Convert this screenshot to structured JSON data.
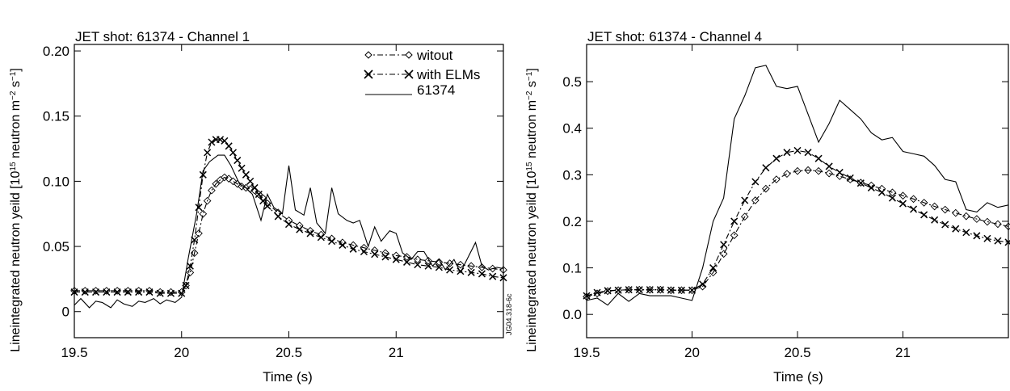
{
  "ylabel_main": "Lineintegrated neutron yeild [10",
  "ylabel_exp15": "15",
  "ylabel_mid": " neutron m",
  "ylabel_expm2": "−2",
  "ylabel_s": " s",
  "ylabel_expm1": "−1",
  "ylabel_close": "]",
  "colors": {
    "line": "#000000",
    "background": "#ffffff"
  },
  "chart_data": [
    {
      "type": "line",
      "title": "JET shot: 61374 - Channel 1",
      "xlabel": "Time (s)",
      "xlim": [
        19.5,
        21.5
      ],
      "ylim": [
        -0.02,
        0.205
      ],
      "xticks": [
        19.5,
        20,
        20.5,
        21
      ],
      "xtick_labels": [
        "19.5",
        "20",
        "20.5",
        "21"
      ],
      "yticks": [
        0,
        0.05,
        0.1,
        0.15,
        0.2
      ],
      "ytick_labels": [
        "0",
        "0.05",
        "0.10",
        "0.15",
        "0.20"
      ],
      "watermark": "JG04.318-6c",
      "legend": {
        "position": "top-right",
        "entries": [
          "witout",
          "with ELMs",
          "61374"
        ]
      },
      "series": [
        {
          "name": "witout",
          "marker": "diamond",
          "style": "dash-dot",
          "x": [
            19.5,
            19.55,
            19.6,
            19.65,
            19.7,
            19.75,
            19.8,
            19.85,
            19.9,
            19.95,
            20.0,
            20.02,
            20.04,
            20.06,
            20.08,
            20.1,
            20.12,
            20.14,
            20.16,
            20.18,
            20.2,
            20.22,
            20.24,
            20.26,
            20.28,
            20.3,
            20.32,
            20.34,
            20.36,
            20.38,
            20.4,
            20.45,
            20.5,
            20.55,
            20.6,
            20.65,
            20.7,
            20.75,
            20.8,
            20.85,
            20.9,
            20.95,
            21.0,
            21.05,
            21.1,
            21.15,
            21.2,
            21.25,
            21.3,
            21.35,
            21.4,
            21.45,
            21.5
          ],
          "y": [
            0.016,
            0.016,
            0.016,
            0.016,
            0.016,
            0.016,
            0.016,
            0.016,
            0.015,
            0.015,
            0.015,
            0.02,
            0.03,
            0.045,
            0.06,
            0.075,
            0.085,
            0.093,
            0.098,
            0.101,
            0.103,
            0.102,
            0.1,
            0.098,
            0.096,
            0.095,
            0.094,
            0.093,
            0.09,
            0.087,
            0.083,
            0.076,
            0.07,
            0.066,
            0.062,
            0.059,
            0.056,
            0.053,
            0.051,
            0.049,
            0.047,
            0.045,
            0.043,
            0.042,
            0.04,
            0.039,
            0.038,
            0.037,
            0.036,
            0.035,
            0.034,
            0.033,
            0.032
          ]
        },
        {
          "name": "with ELMs",
          "marker": "x",
          "style": "dash-dot",
          "x": [
            19.5,
            19.55,
            19.6,
            19.65,
            19.7,
            19.75,
            19.8,
            19.85,
            19.9,
            19.95,
            20.0,
            20.02,
            20.04,
            20.06,
            20.08,
            20.1,
            20.12,
            20.14,
            20.16,
            20.18,
            20.2,
            20.22,
            20.24,
            20.26,
            20.28,
            20.3,
            20.32,
            20.34,
            20.36,
            20.38,
            20.4,
            20.45,
            20.5,
            20.55,
            20.6,
            20.65,
            20.7,
            20.75,
            20.8,
            20.85,
            20.9,
            20.95,
            21.0,
            21.05,
            21.1,
            21.15,
            21.2,
            21.25,
            21.3,
            21.35,
            21.4,
            21.45,
            21.5
          ],
          "y": [
            0.015,
            0.015,
            0.015,
            0.015,
            0.015,
            0.015,
            0.015,
            0.015,
            0.014,
            0.014,
            0.014,
            0.02,
            0.035,
            0.055,
            0.08,
            0.105,
            0.122,
            0.13,
            0.132,
            0.132,
            0.131,
            0.127,
            0.122,
            0.116,
            0.11,
            0.105,
            0.1,
            0.095,
            0.09,
            0.085,
            0.081,
            0.073,
            0.067,
            0.063,
            0.06,
            0.057,
            0.054,
            0.051,
            0.048,
            0.046,
            0.044,
            0.042,
            0.04,
            0.038,
            0.036,
            0.035,
            0.034,
            0.032,
            0.031,
            0.03,
            0.029,
            0.027,
            0.026
          ]
        },
        {
          "name": "61374",
          "marker": "none",
          "style": "solid",
          "x": [
            19.5,
            19.53,
            19.57,
            19.6,
            19.63,
            19.67,
            19.7,
            19.73,
            19.77,
            19.8,
            19.83,
            19.87,
            19.9,
            19.93,
            19.97,
            20.0,
            20.03,
            20.07,
            20.1,
            20.13,
            20.17,
            20.2,
            20.23,
            20.27,
            20.3,
            20.33,
            20.37,
            20.4,
            20.43,
            20.47,
            20.5,
            20.53,
            20.57,
            20.6,
            20.63,
            20.67,
            20.7,
            20.73,
            20.77,
            20.8,
            20.83,
            20.87,
            20.9,
            20.93,
            20.97,
            21.0,
            21.03,
            21.07,
            21.1,
            21.13,
            21.17,
            21.2,
            21.23,
            21.27,
            21.3,
            21.33,
            21.37,
            21.4,
            21.43,
            21.47,
            21.5
          ],
          "y": [
            0.005,
            0.01,
            0.003,
            0.008,
            0.007,
            0.003,
            0.009,
            0.006,
            0.004,
            0.008,
            0.007,
            0.01,
            0.006,
            0.009,
            0.007,
            0.011,
            0.04,
            0.075,
            0.108,
            0.115,
            0.12,
            0.12,
            0.112,
            0.098,
            0.095,
            0.09,
            0.07,
            0.09,
            0.08,
            0.075,
            0.112,
            0.078,
            0.074,
            0.095,
            0.068,
            0.06,
            0.095,
            0.075,
            0.07,
            0.068,
            0.07,
            0.05,
            0.065,
            0.054,
            0.062,
            0.06,
            0.045,
            0.04,
            0.046,
            0.046,
            0.035,
            0.04,
            0.032,
            0.04,
            0.03,
            0.04,
            0.053,
            0.035,
            0.032,
            0.034,
            0.033
          ]
        }
      ]
    },
    {
      "type": "line",
      "title": "JET shot: 61374 - Channel 4",
      "xlabel": "Time (s)",
      "xlim": [
        19.5,
        21.5
      ],
      "ylim": [
        -0.05,
        0.58
      ],
      "xticks": [
        19.5,
        20,
        20.5,
        21
      ],
      "xtick_labels": [
        "19.5",
        "20",
        "20.5",
        "21"
      ],
      "yticks": [
        0,
        0.1,
        0.2,
        0.3,
        0.4,
        0.5
      ],
      "ytick_labels": [
        "0.0",
        "0.1",
        "0.2",
        "0.3",
        "0.4",
        "0.5"
      ],
      "series": [
        {
          "name": "witout",
          "marker": "diamond",
          "style": "dash-dot",
          "x": [
            19.5,
            19.55,
            19.6,
            19.65,
            19.7,
            19.75,
            19.8,
            19.85,
            19.9,
            19.95,
            20.0,
            20.05,
            20.1,
            20.15,
            20.2,
            20.25,
            20.3,
            20.35,
            20.4,
            20.45,
            20.5,
            20.55,
            20.6,
            20.65,
            20.7,
            20.75,
            20.8,
            20.85,
            20.9,
            20.95,
            21.0,
            21.05,
            21.1,
            21.15,
            21.2,
            21.25,
            21.3,
            21.35,
            21.4,
            21.45,
            21.5
          ],
          "y": [
            0.038,
            0.045,
            0.05,
            0.052,
            0.053,
            0.053,
            0.053,
            0.053,
            0.052,
            0.052,
            0.052,
            0.06,
            0.09,
            0.13,
            0.17,
            0.21,
            0.245,
            0.27,
            0.29,
            0.302,
            0.308,
            0.31,
            0.308,
            0.303,
            0.297,
            0.29,
            0.283,
            0.277,
            0.27,
            0.262,
            0.255,
            0.248,
            0.24,
            0.232,
            0.225,
            0.218,
            0.211,
            0.205,
            0.199,
            0.194,
            0.189
          ]
        },
        {
          "name": "with ELMs",
          "marker": "x",
          "style": "dash-dot",
          "x": [
            19.5,
            19.55,
            19.6,
            19.65,
            19.7,
            19.75,
            19.8,
            19.85,
            19.9,
            19.95,
            20.0,
            20.05,
            20.1,
            20.15,
            20.2,
            20.25,
            20.3,
            20.35,
            20.4,
            20.45,
            20.5,
            20.55,
            20.6,
            20.65,
            20.7,
            20.75,
            20.8,
            20.85,
            20.9,
            20.95,
            21.0,
            21.05,
            21.1,
            21.15,
            21.2,
            21.25,
            21.3,
            21.35,
            21.4,
            21.45,
            21.5
          ],
          "y": [
            0.04,
            0.047,
            0.051,
            0.052,
            0.053,
            0.053,
            0.053,
            0.053,
            0.052,
            0.052,
            0.052,
            0.065,
            0.1,
            0.15,
            0.2,
            0.245,
            0.285,
            0.315,
            0.335,
            0.348,
            0.352,
            0.348,
            0.335,
            0.318,
            0.305,
            0.293,
            0.282,
            0.272,
            0.262,
            0.25,
            0.238,
            0.226,
            0.214,
            0.203,
            0.193,
            0.184,
            0.176,
            0.169,
            0.163,
            0.158,
            0.155
          ]
        },
        {
          "name": "61374",
          "marker": "none",
          "style": "solid",
          "x": [
            19.5,
            19.55,
            19.6,
            19.65,
            19.7,
            19.75,
            19.8,
            19.85,
            19.9,
            19.95,
            20.0,
            20.05,
            20.1,
            20.15,
            20.2,
            20.25,
            20.3,
            20.35,
            20.4,
            20.45,
            20.5,
            20.55,
            20.6,
            20.65,
            20.7,
            20.75,
            20.8,
            20.85,
            20.9,
            20.95,
            21.0,
            21.05,
            21.1,
            21.15,
            21.2,
            21.25,
            21.3,
            21.35,
            21.4,
            21.45,
            21.5
          ],
          "y": [
            0.03,
            0.035,
            0.02,
            0.045,
            0.028,
            0.045,
            0.04,
            0.04,
            0.04,
            0.035,
            0.03,
            0.1,
            0.2,
            0.25,
            0.42,
            0.47,
            0.53,
            0.535,
            0.49,
            0.485,
            0.49,
            0.43,
            0.37,
            0.41,
            0.46,
            0.44,
            0.42,
            0.39,
            0.375,
            0.38,
            0.35,
            0.345,
            0.34,
            0.32,
            0.29,
            0.285,
            0.225,
            0.22,
            0.24,
            0.23,
            0.235
          ]
        }
      ]
    }
  ]
}
